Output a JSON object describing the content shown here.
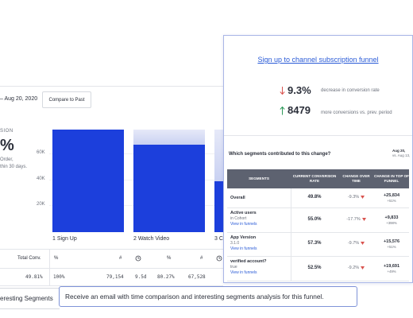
{
  "toolbar": {
    "date_range": "– Aug 20, 2020",
    "compare_button": "Compare to Past"
  },
  "funnel": {
    "metric_label": "SION",
    "metric_value": "%",
    "description": [
      "Order,",
      "thin 30 days."
    ],
    "y_labels": [
      "60K",
      "40K",
      "20K"
    ],
    "steps": [
      "1 Sign Up",
      "2 Watch Video",
      "3 C"
    ],
    "table": {
      "total_header": "Total Conv.",
      "columns": [
        "%",
        "#",
        "%",
        "#"
      ],
      "total_value": "49.81%",
      "cells": [
        "100%",
        "79,154",
        "9.5d",
        "80.27%",
        "67,528"
      ]
    }
  },
  "footer": {
    "tab": "eresting Segments",
    "banner": "Receive an email with time comparison and interesting segments analysis for this funnel."
  },
  "panel": {
    "title": "Sign up to channel subscription funnel",
    "decrease_value": "9.3%",
    "decrease_text": "decrease in conversion rate",
    "increase_value": "8479",
    "increase_text": "more conversions vs. prev. period",
    "question": "Which segments contributed to this change?",
    "date": "Aug 20,",
    "date_compare": "vs. Aug 13,",
    "columns": [
      "SEGMENTS",
      "CURRENT CONVERSION RATE",
      "CHANGE OVER TIME",
      "CHANGE IN TOP OF FUNNEL"
    ],
    "rows": [
      {
        "segment": "Overall",
        "rate": "49.8%",
        "change": "-9.3%",
        "top": "+25,834",
        "top_pct": "+51%"
      },
      {
        "segment": "Active users",
        "detail": "in Cohort",
        "link": "View in funnels",
        "rate": "55.0%",
        "change": "-17.7%",
        "top": "+9,833",
        "top_pct": "+398%"
      },
      {
        "segment": "App Version",
        "detail": "3.1.0",
        "link": "View in funnels",
        "rate": "57.3%",
        "change": "-9.7%",
        "top": "+15,576",
        "top_pct": "+51%"
      },
      {
        "segment": "verified account?",
        "detail": "true",
        "link": "View in funnels",
        "rate": "52.5%",
        "change": "-9.2%",
        "top": "+19,691",
        "top_pct": "+49%"
      }
    ]
  }
}
